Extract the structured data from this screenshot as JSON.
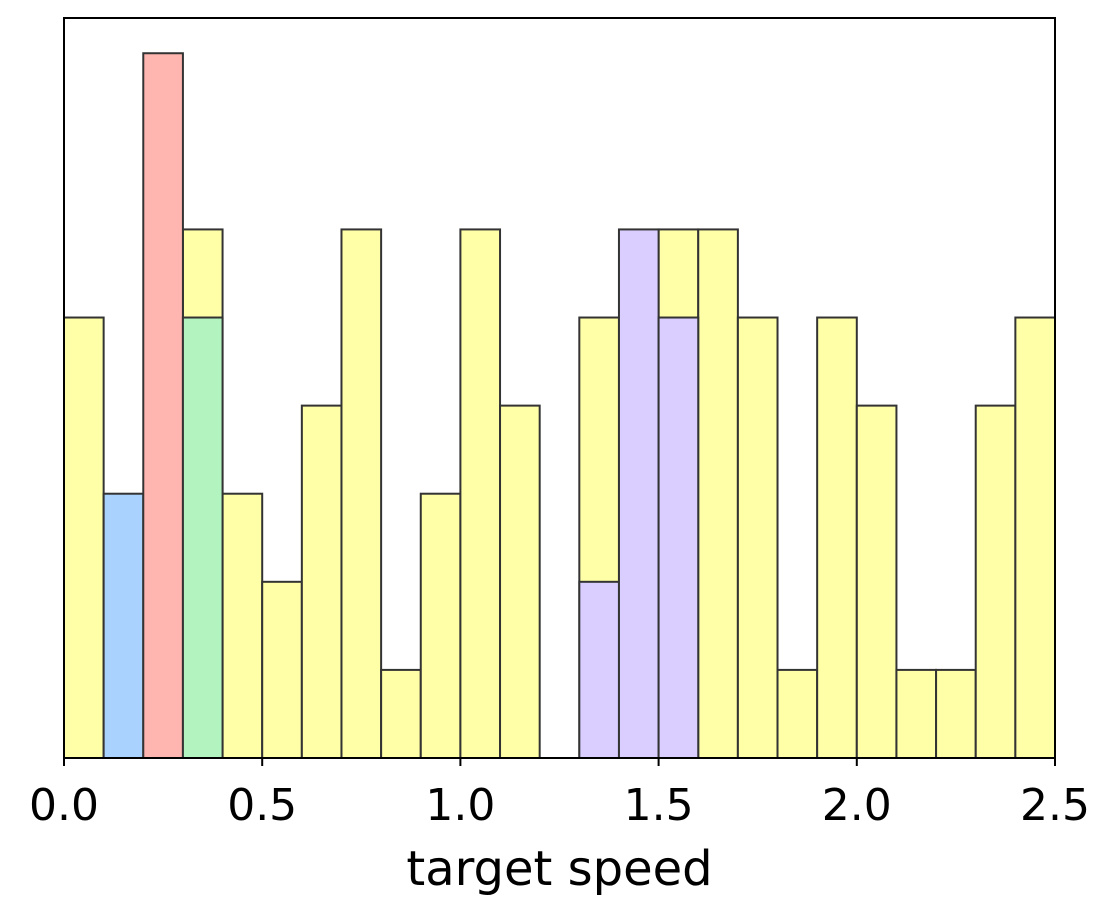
{
  "chart_data": {
    "type": "bar",
    "xlabel": "target speed",
    "ylabel": "",
    "xlim": [
      0.0,
      2.5
    ],
    "ylim": [
      0,
      8.4
    ],
    "yticks_shown": false,
    "grid": false,
    "bin_width": 0.1,
    "xticks": [
      "0.0",
      "0.5",
      "1.0",
      "1.5",
      "2.0",
      "2.5"
    ],
    "xtick_values": [
      0.0,
      0.5,
      1.0,
      1.5,
      2.0,
      2.5
    ],
    "series": [
      {
        "color": "#ffffa8",
        "bins": [
          {
            "x": 0.0,
            "value": 5
          },
          {
            "x": 0.3,
            "value": 6
          },
          {
            "x": 0.4,
            "value": 3
          },
          {
            "x": 0.5,
            "value": 2
          },
          {
            "x": 0.6,
            "value": 4
          },
          {
            "x": 0.7,
            "value": 6
          },
          {
            "x": 0.8,
            "value": 1
          },
          {
            "x": 0.9,
            "value": 3
          },
          {
            "x": 1.0,
            "value": 6
          },
          {
            "x": 1.1,
            "value": 4
          },
          {
            "x": 1.3,
            "value": 5
          },
          {
            "x": 1.5,
            "value": 6
          },
          {
            "x": 1.6,
            "value": 6
          },
          {
            "x": 1.7,
            "value": 5
          },
          {
            "x": 1.8,
            "value": 1
          },
          {
            "x": 1.9,
            "value": 5
          },
          {
            "x": 2.0,
            "value": 4
          },
          {
            "x": 2.1,
            "value": 1
          },
          {
            "x": 2.2,
            "value": 1
          },
          {
            "x": 2.3,
            "value": 4
          },
          {
            "x": 2.4,
            "value": 5
          }
        ]
      },
      {
        "color": "#aad2fe",
        "bins": [
          {
            "x": 0.1,
            "value": 3
          }
        ]
      },
      {
        "color": "#ffb6b0",
        "bins": [
          {
            "x": 0.2,
            "value": 8
          }
        ]
      },
      {
        "color": "#b2f3c0",
        "bins": [
          {
            "x": 0.3,
            "value": 5
          }
        ]
      },
      {
        "color": "#d9ceff",
        "bins": [
          {
            "x": 1.3,
            "value": 2
          },
          {
            "x": 1.4,
            "value": 6
          },
          {
            "x": 1.5,
            "value": 5
          }
        ]
      }
    ],
    "edge_color": "#333333"
  }
}
